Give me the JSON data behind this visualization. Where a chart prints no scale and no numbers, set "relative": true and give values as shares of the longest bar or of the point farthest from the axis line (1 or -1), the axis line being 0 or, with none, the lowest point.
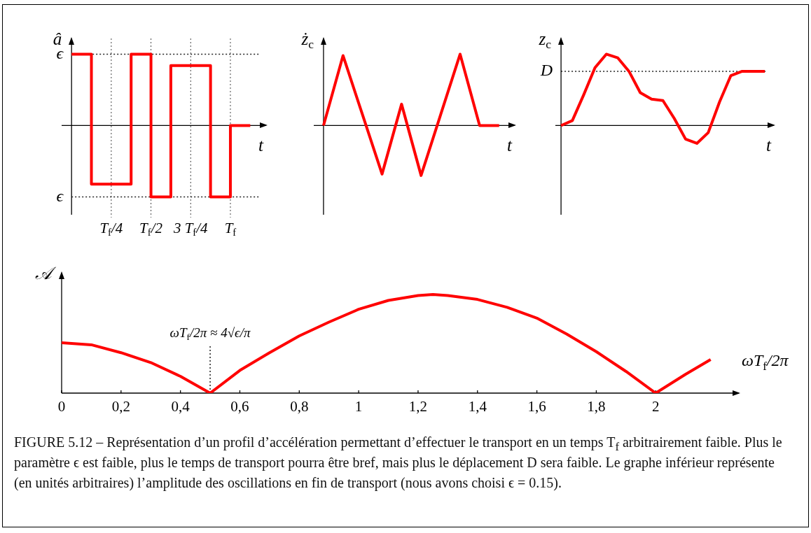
{
  "chart_data": [
    {
      "type": "step",
      "ylabel": "â",
      "xlabel": "t",
      "relative": true,
      "categories": [
        null,
        null,
        "T$_{f}$/4",
        null,
        "T$_{f}$/2",
        null,
        "3 T$_{f}$/4",
        null,
        "T$_{f}$",
        null
      ],
      "series": [
        {
          "color": "#ff0000",
          "values": [
            1,
            -0.82,
            -0.82,
            1,
            -1,
            0.84,
            0.84,
            -1,
            0,
            0
          ]
        }
      ],
      "ref_lines": [
        {
          "axis": "y",
          "value": 1,
          "label": "ϵ",
          "line_style": "dotted"
        },
        {
          "axis": "y",
          "value": -1,
          "label": "ϵ",
          "line_style": "dotted"
        }
      ],
      "grid": "x",
      "tick_labels": "x",
      "marker": "none"
    },
    {
      "type": "line",
      "ylabel": "ż$_{c}$",
      "xlabel": "t",
      "relative": true,
      "categories": [
        null,
        null,
        null,
        null,
        null,
        null,
        null,
        null,
        null,
        null
      ],
      "series": [
        {
          "color": "#ff0000",
          "values": [
            0,
            0.98,
            0.15,
            -0.68,
            0.3,
            -0.7,
            0.15,
            1,
            0,
            0
          ]
        }
      ],
      "tick_labels": false,
      "marker": "none"
    },
    {
      "type": "line",
      "ylabel": "z$_{c}$",
      "xlabel": "t",
      "relative": true,
      "categories": [
        null,
        null,
        null,
        null,
        null,
        null,
        null,
        null,
        null,
        null,
        null,
        null,
        null,
        null,
        null,
        null,
        null,
        null,
        null
      ],
      "series": [
        {
          "color": "#ff0000",
          "values": [
            0,
            0.07,
            0.43,
            0.81,
            1,
            0.95,
            0.76,
            0.46,
            0.37,
            0.35,
            0.1,
            -0.19,
            -0.25,
            -0.1,
            0.33,
            0.7,
            0.76,
            0.76,
            0.76
          ]
        }
      ],
      "ref_lines": [
        {
          "axis": "y",
          "value": 0.76,
          "label": "D",
          "line_style": "dotted"
        }
      ],
      "tick_labels": false,
      "marker": "none"
    },
    {
      "type": "line",
      "ylabel": "𝒜",
      "xlabel": "ωT$_{f}$/2π",
      "relative": true,
      "x": [
        0,
        0.1,
        0.2,
        0.3,
        0.4,
        0.5,
        0.6,
        0.7,
        0.8,
        0.9,
        1.0,
        1.1,
        1.2,
        1.25,
        1.3,
        1.4,
        1.5,
        1.6,
        1.7,
        1.8,
        1.9,
        2.0,
        2.1,
        2.185
      ],
      "series": [
        {
          "color": "#ff0000",
          "values": [
            0.51,
            0.49,
            0.41,
            0.31,
            0.17,
            0,
            0.23,
            0.41,
            0.58,
            0.72,
            0.85,
            0.94,
            0.99,
            1,
            0.99,
            0.95,
            0.87,
            0.76,
            0.6,
            0.42,
            0.22,
            0,
            0.19,
            0.34
          ]
        }
      ],
      "xlim": [
        0,
        2.28
      ],
      "xticks": [
        0,
        {
          "value": 0.2,
          "label": "0,2"
        },
        {
          "value": 0.4,
          "label": "0,4"
        },
        {
          "value": 0.6,
          "label": "0,6"
        },
        {
          "value": 0.8,
          "label": "0,8"
        },
        1,
        {
          "value": 1.2,
          "label": "1,2"
        },
        {
          "value": 1.4,
          "label": "1,4"
        },
        {
          "value": 1.6,
          "label": "1,6"
        },
        {
          "value": 1.8,
          "label": "1,8"
        },
        2
      ],
      "ref_lines": [
        {
          "axis": "x",
          "value": 0.5,
          "label": "ωT$_{f}$/2π ≈ 4√ϵ/π",
          "line_style": "dotted"
        }
      ],
      "annotations": [
        "FIGURE 5.12 – Représentation d’un profil d’accélération permettant d’effectuer le transport en un temps T$_{f}$ arbitrairement faible. Plus le paramètre ϵ est faible, plus le temps de transport pourra être bref, mais plus le déplacement D sera faible. Le graphe inférieur représente (en unités arbitraires) l’amplitude des oscillations en fin de transport (nous avons choisi ϵ = 0.15)."
      ],
      "tick_labels": "x",
      "marker": "none"
    }
  ]
}
